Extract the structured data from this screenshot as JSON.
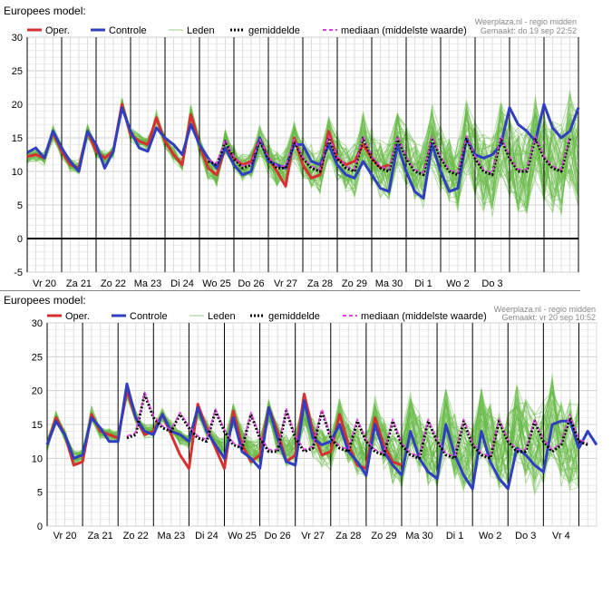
{
  "chart_data": [
    {
      "type": "line",
      "title": "Europees model:",
      "source": "Weerplaza.nl - regio midden",
      "generated": "Gemaakt: do 19 sep 22:52",
      "legend": [
        "Oper.",
        "Controle",
        "Leden",
        "gemiddelde",
        "mediaan (middelste waarde)"
      ],
      "legend_position": "top",
      "grid": true,
      "ylim": [
        -5,
        30
      ],
      "yticks": [
        -5,
        0,
        5,
        10,
        15,
        20,
        25,
        30
      ],
      "categories": [
        "Vr 20",
        "Za 21",
        "Zo 22",
        "Ma 23",
        "Di 24",
        "Wo 25",
        "Do 26",
        "Vr 27",
        "Za 28",
        "Zo 29",
        "Ma 30",
        "Di 1",
        "Wo 2",
        "Do 3"
      ],
      "xlim": [
        0,
        16
      ],
      "series": [
        {
          "name": "Oper.",
          "color": "#d83030",
          "x": [
            0,
            0.25,
            0.5,
            0.75,
            1,
            1.25,
            1.5,
            1.75,
            2,
            2.25,
            2.5,
            2.75,
            3,
            3.25,
            3.5,
            3.75,
            4,
            4.25,
            4.5,
            4.75,
            5,
            5.25,
            5.5,
            5.75,
            6,
            6.25,
            6.5,
            6.75,
            7,
            7.25,
            7.5,
            7.75,
            8,
            8.25,
            8.5,
            8.75,
            9,
            9.25,
            9.5,
            9.75,
            10,
            10.25,
            10.5
          ],
          "values": [
            12.2,
            12.5,
            12,
            15.8,
            13,
            11,
            10.5,
            16,
            13,
            12,
            13,
            20,
            15.5,
            14.5,
            14,
            18,
            14.5,
            12.5,
            11,
            18.5,
            14,
            10.5,
            9.5,
            13.5,
            12,
            11,
            11.5,
            15,
            12,
            10,
            7.8,
            15,
            11,
            9,
            9.5,
            16,
            12,
            11,
            11.5,
            14,
            12,
            10.5,
            11
          ]
        },
        {
          "name": "Controle",
          "color": "#2f3fbf",
          "x": [
            0,
            0.25,
            0.5,
            0.75,
            1,
            1.25,
            1.5,
            1.75,
            2,
            2.25,
            2.5,
            2.75,
            3,
            3.25,
            3.5,
            3.75,
            4,
            4.25,
            4.5,
            4.75,
            5,
            5.25,
            5.5,
            5.75,
            6,
            6.25,
            6.5,
            6.75,
            7,
            7.25,
            7.5,
            7.75,
            8,
            8.25,
            8.5,
            8.75,
            9,
            9.25,
            9.5,
            9.75,
            10,
            10.25,
            10.5,
            10.75,
            11,
            11.25,
            11.5,
            11.75,
            12,
            12.25,
            12.5,
            12.75,
            13,
            13.25,
            13.5,
            13.75,
            14,
            14.25,
            14.5,
            14.75,
            15,
            15.25,
            15.5,
            15.75,
            16
          ],
          "values": [
            12.8,
            13.5,
            12,
            16,
            13.5,
            11.5,
            10,
            16,
            14,
            10.5,
            13,
            19.5,
            16,
            13.5,
            13,
            16.5,
            15,
            14,
            12.5,
            17,
            14,
            12,
            10.5,
            13.5,
            11,
            9.5,
            10,
            15,
            11.5,
            11,
            10.5,
            14,
            14,
            11.5,
            11,
            14,
            11,
            9.5,
            9,
            11.5,
            9.5,
            7.5,
            7,
            14,
            10,
            7,
            6,
            14,
            10,
            7,
            7.5,
            15,
            12.5,
            12,
            12.5,
            14,
            19.5,
            17,
            16,
            14.5,
            20,
            16.5,
            15,
            16,
            19.5
          ]
        },
        {
          "name": "gemiddelde",
          "color": "#000000",
          "x": [
            5.25,
            5.5,
            5.75,
            6,
            6.25,
            6.5,
            6.75,
            7,
            7.25,
            7.5,
            7.75,
            8,
            8.25,
            8.5,
            8.75,
            9,
            9.25,
            9.5,
            9.75,
            10,
            10.25,
            10.5,
            10.75,
            11,
            11.25,
            11.5,
            11.75,
            12,
            12.25,
            12.5,
            12.75,
            13,
            13.25,
            13.5,
            13.75,
            14,
            14.25,
            14.5,
            14.75,
            15,
            15.25,
            15.5,
            15.75
          ],
          "values": [
            11.5,
            11,
            14.5,
            12,
            10.5,
            11,
            14.5,
            12,
            10.5,
            10.5,
            14.5,
            12,
            10.5,
            10,
            15,
            12,
            10.5,
            10,
            15,
            12,
            10.5,
            10,
            15,
            12,
            10,
            9.5,
            15,
            12,
            10,
            9.5,
            15,
            12,
            10,
            9.5,
            15,
            12,
            10,
            10,
            15,
            12,
            10.5,
            10,
            15
          ]
        },
        {
          "name": "mediaan (middelste waarde)",
          "color": "#e040e0",
          "x": [
            5.25,
            5.5,
            5.75,
            6,
            6.25,
            6.5,
            6.75,
            7,
            7.25,
            7.5,
            7.75,
            8,
            8.25,
            8.5,
            8.75,
            9,
            9.25,
            9.5,
            9.75,
            10,
            10.25,
            10.5,
            10.75,
            11,
            11.25,
            11.5,
            11.75,
            12,
            12.25,
            12.5,
            12.75,
            13,
            13.25,
            13.5,
            13.75,
            14,
            14.25,
            14.5,
            14.75,
            15,
            15.25,
            15.5,
            15.75
          ],
          "values": [
            11.8,
            11.2,
            14.8,
            12.2,
            10.8,
            11.2,
            14.8,
            12.2,
            10.8,
            10.8,
            14.8,
            12.2,
            10.8,
            10.3,
            15.3,
            12.3,
            10.8,
            10.3,
            15.3,
            12.3,
            10.8,
            10.3,
            15.3,
            12.3,
            10.3,
            9.8,
            15.3,
            12.3,
            10.3,
            9.8,
            15.3,
            12.3,
            10.3,
            9.8,
            15.3,
            12.3,
            10.3,
            10.3,
            15.3,
            12.3,
            10.8,
            10.3,
            15.3
          ]
        }
      ],
      "ensemble": {
        "name": "Leden",
        "color": "#66bb44",
        "members": 50,
        "base": [
          12.2,
          12.5,
          12,
          15.8,
          13,
          11,
          10.5,
          16,
          13,
          12,
          13,
          20,
          15.5,
          14.5,
          14,
          18,
          14.5,
          12.5,
          11,
          18.5,
          14,
          10.5,
          9.5,
          14.5,
          12,
          10.5,
          11,
          14.5,
          12,
          10.5,
          10.5,
          14.5,
          12,
          10.5,
          10,
          15,
          12,
          10.5,
          10,
          15,
          12,
          10.5,
          10,
          15,
          12,
          10,
          9.5,
          15,
          12,
          10,
          9.5,
          15,
          12,
          10,
          9.5,
          15,
          12,
          10,
          10,
          15,
          12,
          10.5,
          10,
          15,
          12
        ]
      }
    },
    {
      "type": "line",
      "title": "Europees model:",
      "source": "Weerplaza.nl - regio midden",
      "generated": "Gemaakt: vr 20 sep 10:52",
      "legend": [
        "Oper.",
        "Controle",
        "Leden",
        "gemiddelde",
        "mediaan (middelste waarde)"
      ],
      "legend_position": "top",
      "grid": true,
      "ylim": [
        0,
        30
      ],
      "yticks": [
        0,
        5,
        10,
        15,
        20,
        25,
        30
      ],
      "categories": [
        "Vr 20",
        "Za 21",
        "Zo 22",
        "Ma 23",
        "Di 24",
        "Wo 25",
        "Do 26",
        "Vr 27",
        "Za 28",
        "Zo 29",
        "Ma 30",
        "Di 1",
        "Wo 2",
        "Do 3",
        "Vr 4"
      ],
      "xlim": [
        0,
        15.5
      ],
      "series": [
        {
          "name": "Oper.",
          "color": "#d83030",
          "x": [
            0,
            0.25,
            0.5,
            0.75,
            1,
            1.25,
            1.5,
            1.75,
            2,
            2.25,
            2.5,
            2.75,
            3,
            3.25,
            3.5,
            3.75,
            4,
            4.25,
            4.5,
            4.75,
            5,
            5.25,
            5.5,
            5.75,
            6,
            6.25,
            6.5,
            6.75,
            7,
            7.25,
            7.5,
            7.75,
            8,
            8.25,
            8.5,
            8.75,
            9,
            9.25,
            9.5,
            9.75,
            10
          ],
          "values": [
            12,
            16,
            13.5,
            9,
            9.5,
            16.5,
            14,
            13.5,
            13,
            20,
            16,
            13.5,
            14,
            16.5,
            13.5,
            10.5,
            8.5,
            18,
            14.5,
            11.5,
            8.5,
            17,
            12,
            9.5,
            10.5,
            17.5,
            14,
            9.5,
            10.5,
            19.5,
            14,
            10.5,
            11,
            16.5,
            12,
            9,
            8.5,
            16,
            12,
            9.5,
            9
          ]
        },
        {
          "name": "Controle",
          "color": "#2f3fbf",
          "x": [
            0,
            0.25,
            0.5,
            0.75,
            1,
            1.25,
            1.5,
            1.75,
            2,
            2.25,
            2.5,
            2.75,
            3,
            3.25,
            3.5,
            3.75,
            4,
            4.25,
            4.5,
            4.75,
            5,
            5.25,
            5.5,
            5.75,
            6,
            6.25,
            6.5,
            6.75,
            7,
            7.25,
            7.5,
            7.75,
            8,
            8.25,
            8.5,
            8.75,
            9,
            9.25,
            9.5,
            9.75,
            10,
            10.25,
            10.5,
            10.75,
            11,
            11.25,
            11.5,
            11.75,
            12,
            12.25,
            12.5,
            12.75,
            13,
            13.25,
            13.5,
            13.75,
            14,
            14.25,
            14.5,
            14.75,
            15,
            15.25,
            15.5
          ],
          "values": [
            12,
            15.5,
            13.5,
            10,
            10.5,
            16,
            14.5,
            12.5,
            12.5,
            21,
            16,
            14,
            13.5,
            16.5,
            14,
            13.5,
            12.5,
            17.5,
            14,
            12,
            10,
            16,
            11,
            10,
            8.5,
            17.5,
            13,
            9.5,
            9,
            18.5,
            13,
            12,
            12.5,
            15,
            11,
            9.5,
            7.5,
            15,
            11,
            9,
            7.5,
            14,
            10,
            8,
            7,
            15,
            10.5,
            7.5,
            5.5,
            14,
            9.5,
            7,
            5.5,
            11.5,
            10.5,
            9,
            8,
            15,
            15.5,
            15.5,
            11.5,
            14,
            12
          ]
        },
        {
          "name": "gemiddelde",
          "color": "#000000",
          "x": [
            2.25,
            2.5,
            2.75,
            3,
            3.25,
            3.5,
            3.75,
            4,
            4.25,
            4.5,
            4.75,
            5,
            5.25,
            5.5,
            5.75,
            6,
            6.25,
            6.5,
            6.75,
            7,
            7.25,
            7.5,
            7.75,
            8,
            8.25,
            8.5,
            8.75,
            9,
            9.25,
            9.5,
            9.75,
            10,
            10.25,
            10.5,
            10.75,
            11,
            11.25,
            11.5,
            11.75,
            12,
            12.25,
            12.5,
            12.75,
            13,
            13.25,
            13.5,
            13.75,
            14,
            14.25,
            14.5,
            14.75,
            15,
            15.25
          ],
          "values": [
            13,
            13.5,
            19.5,
            16,
            14.5,
            14,
            16.5,
            14.5,
            13,
            12.5,
            17,
            14,
            12,
            11.5,
            16.5,
            13,
            11,
            11,
            17,
            13,
            11,
            11.5,
            17,
            13,
            11.5,
            11,
            15.5,
            12.5,
            11,
            10.5,
            15.5,
            12,
            10.5,
            10,
            15.5,
            12.5,
            10.5,
            10,
            15.5,
            12,
            10.5,
            10,
            15.5,
            12.5,
            11,
            11,
            15.5,
            12.5,
            11,
            12,
            16,
            12.5,
            12
          ]
        },
        {
          "name": "mediaan (middelste waarde)",
          "color": "#e040e0",
          "x": [
            2.25,
            2.5,
            2.75,
            3,
            3.25,
            3.5,
            3.75,
            4,
            4.25,
            4.5,
            4.75,
            5,
            5.25,
            5.5,
            5.75,
            6,
            6.25,
            6.5,
            6.75,
            7,
            7.25,
            7.5,
            7.75,
            8,
            8.25,
            8.5,
            8.75,
            9,
            9.25,
            9.5,
            9.75,
            10,
            10.25,
            10.5,
            10.75,
            11,
            11.25,
            11.5,
            11.75,
            12,
            12.25,
            12.5,
            12.75,
            13,
            13.25,
            13.5,
            13.75,
            14,
            14.25,
            14.5,
            14.75,
            15,
            15.25
          ],
          "values": [
            13.3,
            13.8,
            19.8,
            16.3,
            14.8,
            14.3,
            16.8,
            14.8,
            13.3,
            12.8,
            17.3,
            14.3,
            12.3,
            11.8,
            16.8,
            13.3,
            11.3,
            11.3,
            17.3,
            13.3,
            11.3,
            11.8,
            17.3,
            13.3,
            11.8,
            11.3,
            15.8,
            12.8,
            11.3,
            10.8,
            15.8,
            12.3,
            10.8,
            10.3,
            15.8,
            12.8,
            10.8,
            10.3,
            15.8,
            12.3,
            10.8,
            10.3,
            15.8,
            12.8,
            11.3,
            11.3,
            15.8,
            12.8,
            11.3,
            12.3,
            16.5,
            12.8,
            12.3
          ]
        }
      ],
      "ensemble": {
        "name": "Leden",
        "color": "#66bb44",
        "members": 50,
        "base": [
          12,
          16,
          13.5,
          10,
          10.5,
          16.5,
          14,
          13.5,
          13,
          20,
          16,
          14,
          14,
          16.5,
          14.5,
          13,
          12.5,
          17,
          14.5,
          12.5,
          11.5,
          16.5,
          13,
          11,
          11,
          17,
          13,
          11,
          11.5,
          17,
          13,
          11.5,
          11,
          15.5,
          12.5,
          11,
          10.5,
          15.5,
          12,
          10.5,
          10,
          15.5,
          12.5,
          10.5,
          10,
          15.5,
          12,
          10.5,
          10,
          15.5,
          12.5,
          11,
          11,
          15.5,
          12.5,
          11,
          12,
          16,
          12.5,
          12,
          12
        ]
      }
    }
  ]
}
